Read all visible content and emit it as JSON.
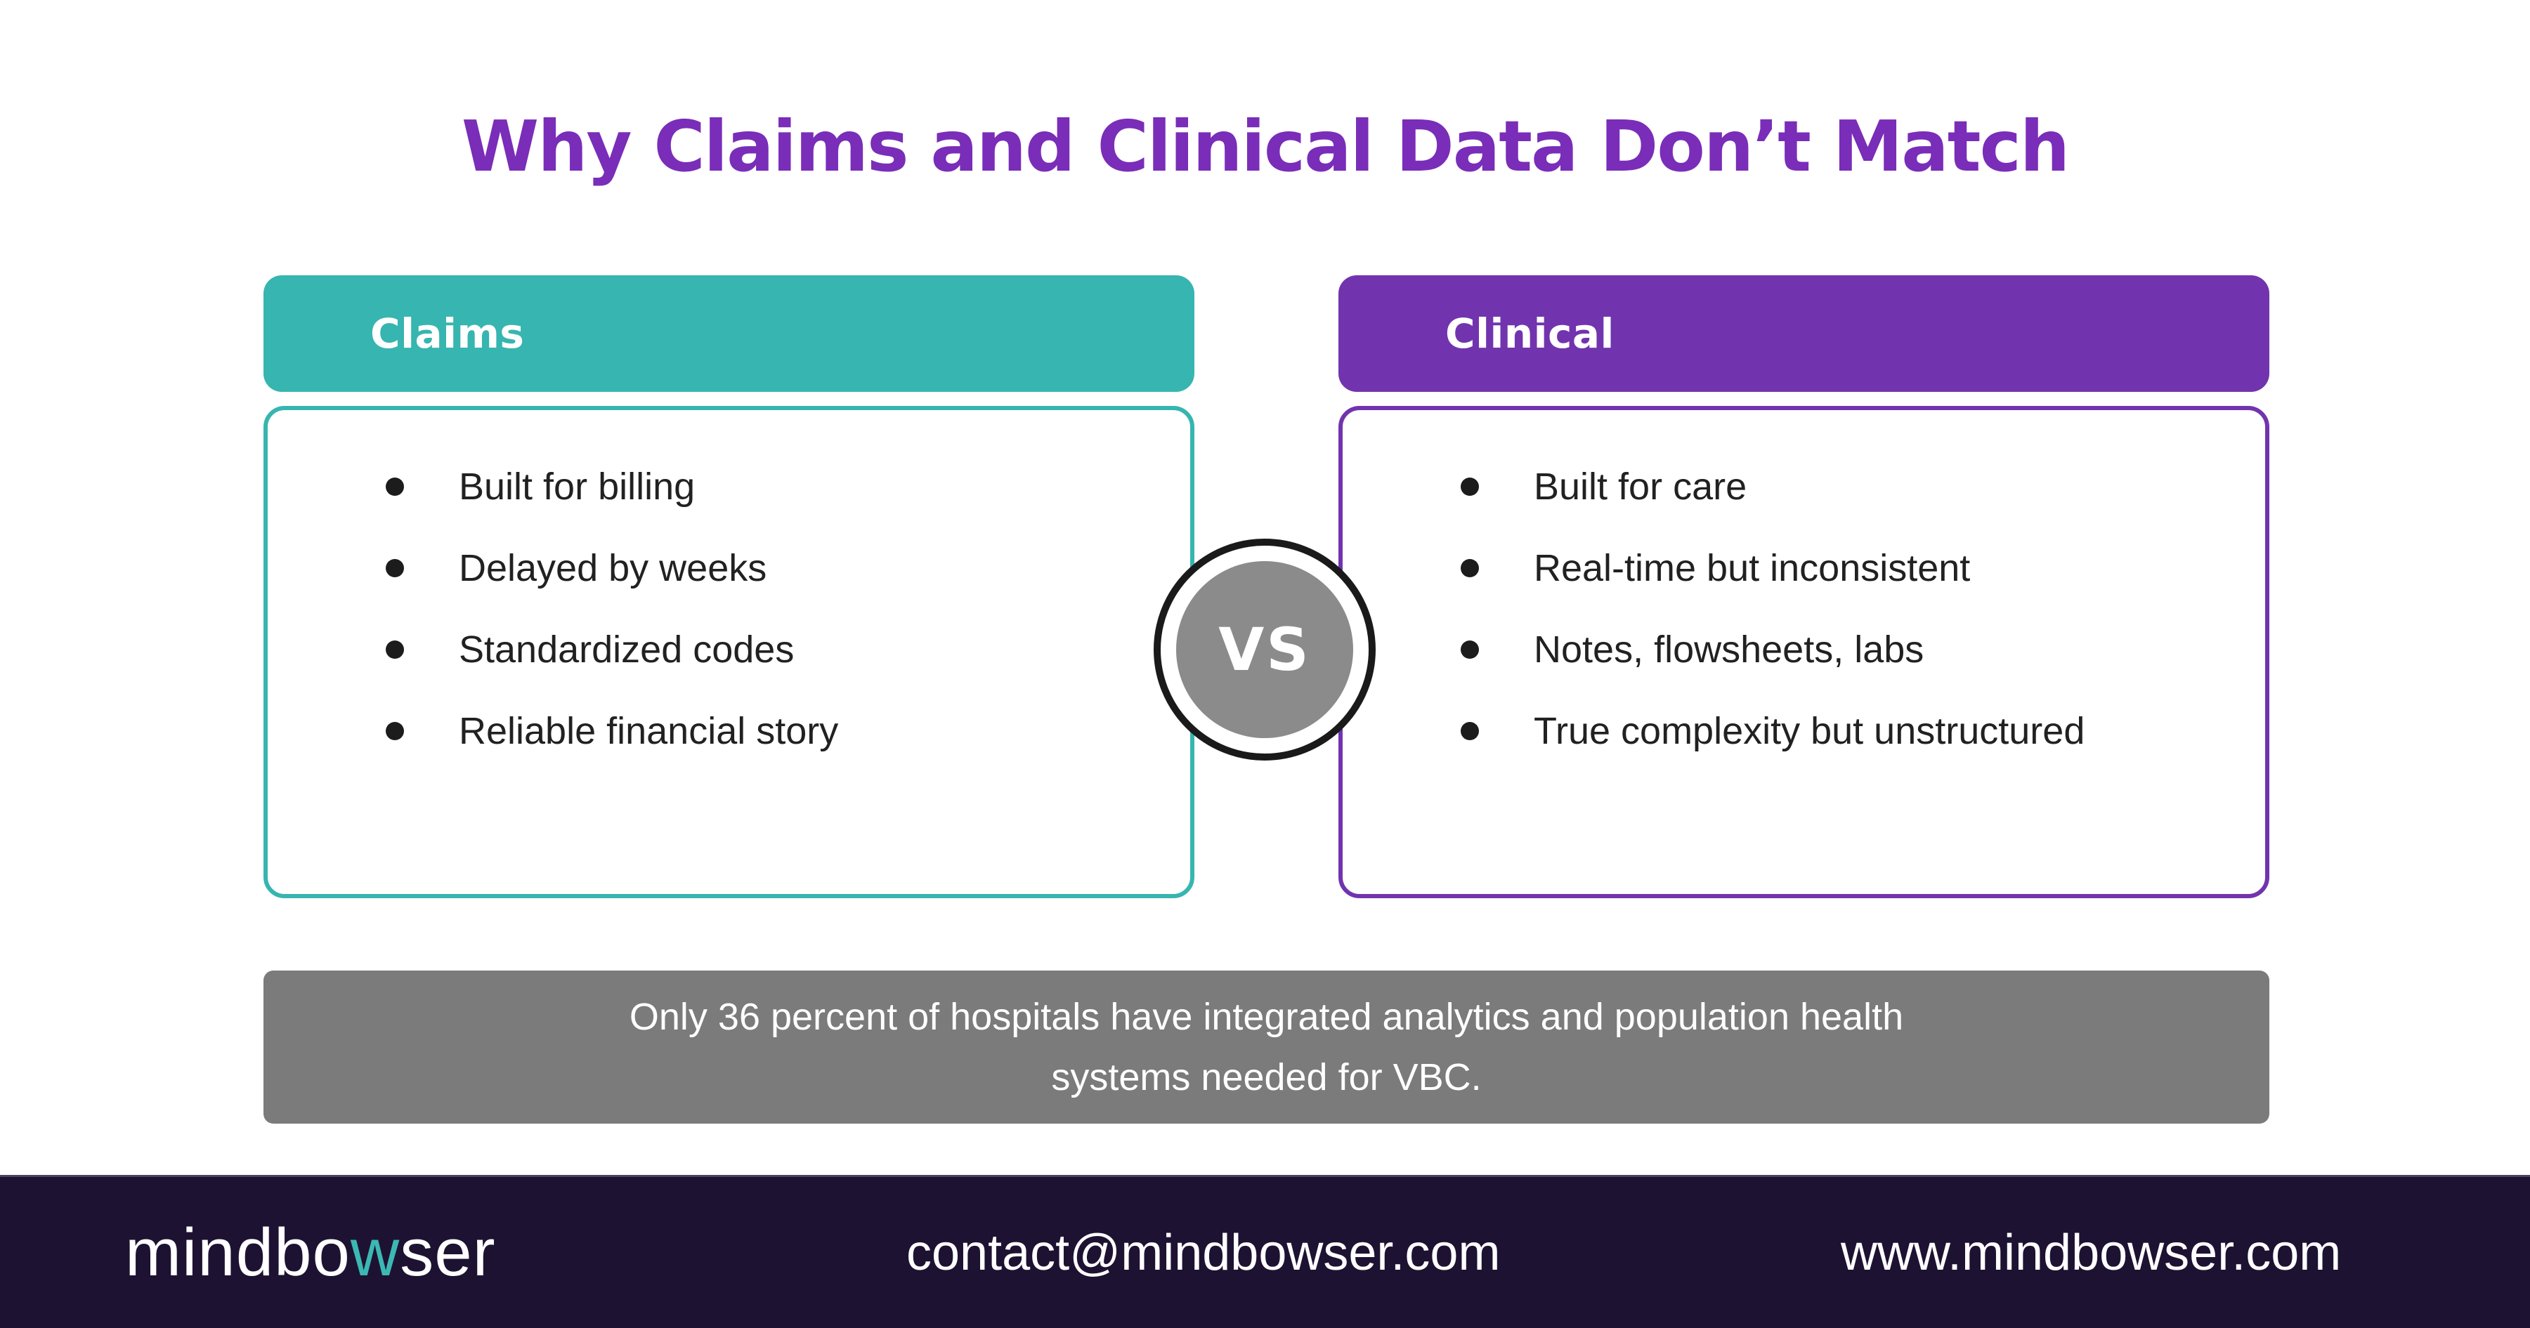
{
  "title": "Why Claims and Clinical Data Don’t Match",
  "cards": [
    {
      "label": "Claims",
      "accent_color": "#37B5B0",
      "items": [
        "Built for billing",
        "Delayed by weeks",
        "Standardized codes",
        "Reliable financial story"
      ]
    },
    {
      "label": "Clinical",
      "accent_color": "#7134AE",
      "items": [
        "Built for care",
        "Real-time but inconsistent",
        "Notes, flowsheets, labs",
        "True complexity but unstructured"
      ]
    }
  ],
  "vs_badge": {
    "label": "VS",
    "circle_color": "#8B8B8B"
  },
  "stat_banner": {
    "lines": [
      "Only 36 percent of hospitals have integrated analytics and population health",
      "systems needed for VBC."
    ],
    "background_color": "#7B7B7B"
  },
  "footer": {
    "logo": {
      "prefix": "mindbo",
      "highlight": "w",
      "suffix": "ser",
      "highlight_color": "#3CB8B2"
    },
    "email": "contact@mindbowser.com",
    "website": "www.mindbowser.com",
    "background_color": "#1E1233"
  },
  "colors": {
    "title_purple": "#7A2DB8",
    "text_dark": "#212121",
    "page_background": "#FFFFFF"
  }
}
